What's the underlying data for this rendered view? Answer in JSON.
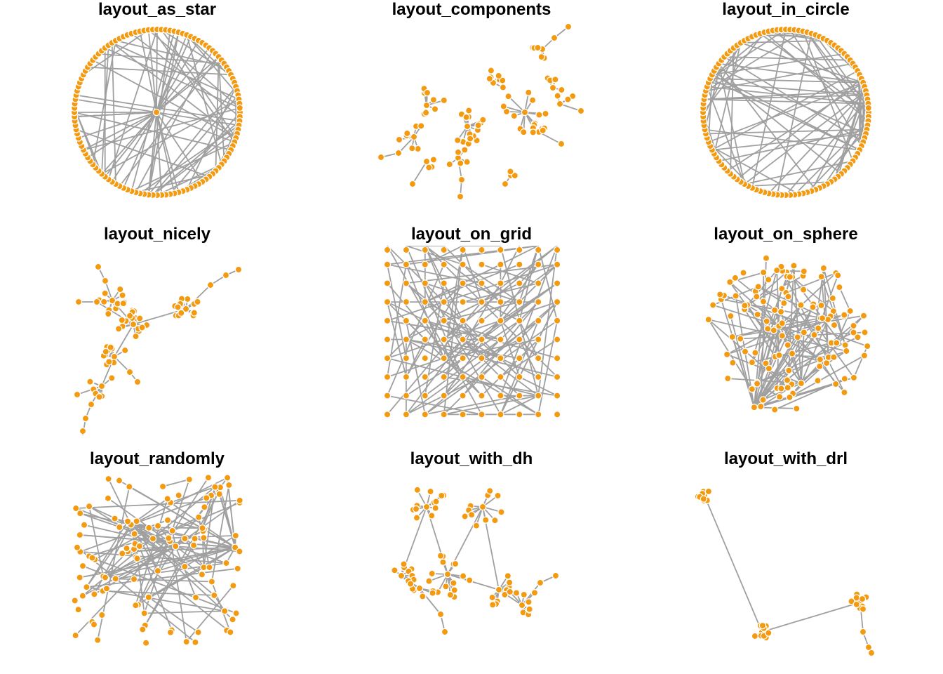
{
  "figure": {
    "background": "#ffffff",
    "node_color": "#f39a10",
    "node_border": "#ffffff",
    "edge_color": "#a0a0a0",
    "grid": "3x3"
  },
  "panels": [
    {
      "id": "as_star",
      "title": "layout_as_star",
      "layout": "star"
    },
    {
      "id": "components",
      "title": "layout_components",
      "layout": "components"
    },
    {
      "id": "in_circle",
      "title": "layout_in_circle",
      "layout": "circle"
    },
    {
      "id": "nicely",
      "title": "layout_nicely",
      "layout": "tree-clusters"
    },
    {
      "id": "on_grid",
      "title": "layout_on_grid",
      "layout": "grid"
    },
    {
      "id": "on_sphere",
      "title": "layout_on_sphere",
      "layout": "sphere"
    },
    {
      "id": "randomly",
      "title": "layout_randomly",
      "layout": "random"
    },
    {
      "id": "with_dh",
      "title": "layout_with_dh",
      "layout": "dh"
    },
    {
      "id": "with_drl",
      "title": "layout_with_drl",
      "layout": "drl"
    }
  ]
}
